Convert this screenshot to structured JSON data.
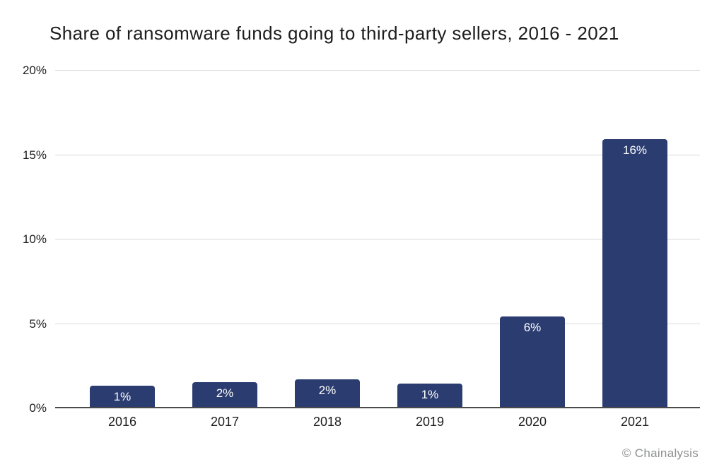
{
  "chart_data": {
    "type": "bar",
    "title": "Share of ransomware funds going to third-party sellers, 2016 - 2021",
    "categories": [
      "2016",
      "2017",
      "2018",
      "2019",
      "2020",
      "2021"
    ],
    "values": [
      1,
      2,
      2,
      1,
      6,
      16
    ],
    "bar_labels": [
      "1%",
      "2%",
      "2%",
      "1%",
      "6%",
      "16%"
    ],
    "bar_heights_est": [
      1.35,
      1.55,
      1.7,
      1.45,
      5.45,
      15.95
    ],
    "xlabel": "",
    "ylabel": "",
    "ylim": [
      0,
      20
    ],
    "yticks": [
      {
        "value": 0,
        "label": "0%"
      },
      {
        "value": 5,
        "label": "5%"
      },
      {
        "value": 10,
        "label": "10%"
      },
      {
        "value": 15,
        "label": "15%"
      },
      {
        "value": 20,
        "label": "20%"
      }
    ],
    "grid": true,
    "legend": null,
    "source": "© Chainalysis",
    "colors": {
      "bar": "#2b3c70",
      "bar_label": "#ffffff",
      "grid": "#d9d9d9",
      "axis": "#4a4a4a",
      "text": "#1d1d1d",
      "source": "#8f9090"
    }
  }
}
